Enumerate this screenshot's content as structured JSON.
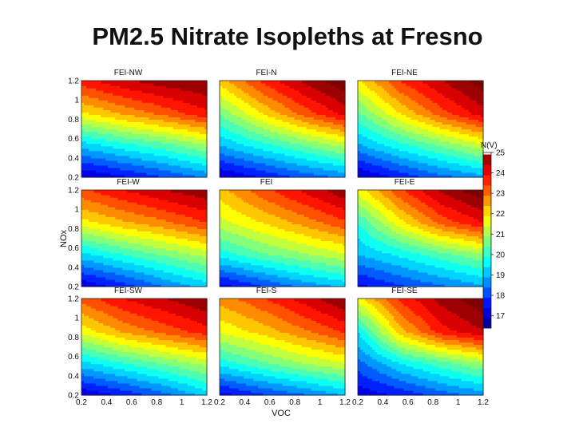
{
  "title": "PM2.5 Nitrate Isopleths at Fresno",
  "chart_data": {
    "type": "heatmap",
    "title": "PM2.5 Nitrate Isopleths at Fresno",
    "xlabel": "VOC",
    "ylabel": "NOx",
    "xlim": [
      0.2,
      1.2
    ],
    "ylim": [
      0.2,
      1.2
    ],
    "x_ticks": [
      "0.2",
      "0.4",
      "0.6",
      "0.8",
      "1",
      "1.2"
    ],
    "y_ticks": [
      "0.2",
      "0.4",
      "0.6",
      "0.8",
      "1",
      "1.2"
    ],
    "colorbar": {
      "label": "N(V)",
      "min": 16.4,
      "max": 25,
      "ticks": [
        "25",
        "24",
        "23",
        "22",
        "21",
        "20",
        "19",
        "18",
        "17"
      ]
    },
    "panels": [
      {
        "name": "FEI-NW",
        "grid": [
          [
            16.9,
            17.4,
            18.0,
            18.6
          ],
          [
            19.2,
            19.8,
            20.3,
            21.0
          ],
          [
            21.9,
            22.6,
            23.2,
            23.9
          ],
          [
            23.8,
            24.4,
            24.8,
            25.0
          ]
        ]
      },
      {
        "name": "FEI-N",
        "grid": [
          [
            16.9,
            17.5,
            18.1,
            18.6
          ],
          [
            19.0,
            19.8,
            20.5,
            21.2
          ],
          [
            20.6,
            22.0,
            23.2,
            24.2
          ],
          [
            22.2,
            23.6,
            24.6,
            25.4
          ]
        ]
      },
      {
        "name": "FEI-NE",
        "grid": [
          [
            16.9,
            17.6,
            18.3,
            18.8
          ],
          [
            18.9,
            19.8,
            20.6,
            21.4
          ],
          [
            20.4,
            22.0,
            23.3,
            24.3
          ],
          [
            21.9,
            23.5,
            24.5,
            25.3
          ]
        ]
      },
      {
        "name": "FEI-W",
        "grid": [
          [
            17.0,
            17.7,
            18.5,
            19.2
          ],
          [
            19.3,
            20.0,
            20.6,
            21.2
          ],
          [
            21.8,
            22.4,
            22.9,
            23.5
          ],
          [
            23.4,
            24.0,
            24.5,
            24.9
          ]
        ]
      },
      {
        "name": "FEI",
        "grid": [
          [
            17.2,
            17.9,
            18.6,
            19.1
          ],
          [
            19.7,
            20.4,
            20.9,
            21.4
          ],
          [
            21.3,
            22.0,
            22.7,
            23.4
          ],
          [
            22.3,
            23.3,
            24.1,
            24.9
          ]
        ]
      },
      {
        "name": "FEI-E",
        "grid": [
          [
            17.3,
            17.9,
            18.4,
            18.9
          ],
          [
            19.0,
            19.6,
            20.3,
            20.9
          ],
          [
            20.0,
            21.8,
            23.2,
            24.0
          ],
          [
            21.7,
            23.4,
            24.6,
            25.4
          ]
        ]
      },
      {
        "name": "FEI-SW",
        "grid": [
          [
            17.0,
            17.6,
            18.3,
            19.2
          ],
          [
            19.3,
            20.0,
            20.6,
            21.2
          ],
          [
            21.7,
            22.6,
            23.2,
            23.8
          ],
          [
            23.2,
            24.0,
            24.5,
            25.0
          ]
        ]
      },
      {
        "name": "FEI-S",
        "grid": [
          [
            17.2,
            17.9,
            18.4,
            19.0
          ],
          [
            19.7,
            20.4,
            21.0,
            21.5
          ],
          [
            21.6,
            22.2,
            22.9,
            23.6
          ],
          [
            22.7,
            23.4,
            24.2,
            25.0
          ]
        ]
      },
      {
        "name": "FEI-SE",
        "grid": [
          [
            17.1,
            17.6,
            18.2,
            18.7
          ],
          [
            18.3,
            19.5,
            20.3,
            21.0
          ],
          [
            19.5,
            22.3,
            23.8,
            24.5
          ],
          [
            21.8,
            23.6,
            24.7,
            25.4
          ]
        ]
      }
    ]
  }
}
